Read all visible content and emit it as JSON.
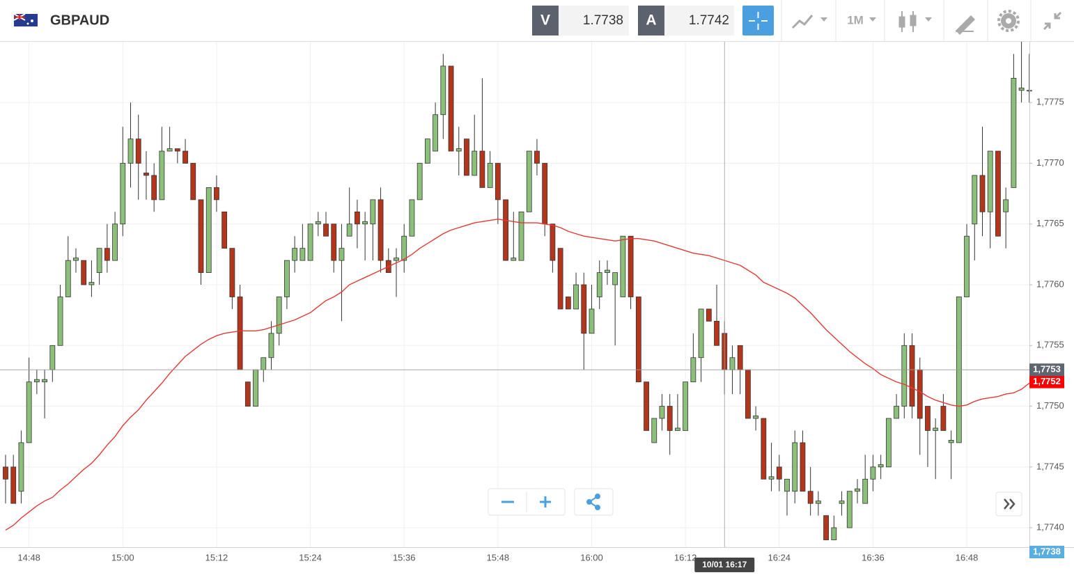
{
  "header": {
    "symbol": "GBPAUD",
    "sell_label": "V",
    "sell_price": 1.7738,
    "buy_label": "A",
    "buy_price": 1.7742,
    "timeframe": "1M"
  },
  "chart_data": {
    "type": "candlestick",
    "title": "GBPAUD",
    "categories": [
      null,
      null,
      null,
      "14:48",
      null,
      null,
      null,
      null,
      null,
      null,
      null,
      null,
      null,
      null,
      null,
      "15:00",
      null,
      null,
      null,
      null,
      null,
      null,
      null,
      null,
      null,
      null,
      null,
      "15:12",
      null,
      null,
      null,
      null,
      null,
      null,
      null,
      null,
      null,
      null,
      null,
      "15:24",
      null,
      null,
      null,
      null,
      null,
      null,
      null,
      null,
      null,
      null,
      null,
      "15:36",
      null,
      null,
      null,
      null,
      null,
      null,
      null,
      null,
      null,
      null,
      null,
      "15:48",
      null,
      null,
      null,
      null,
      null,
      null,
      null,
      null,
      null,
      null,
      null,
      "16:00",
      null,
      null,
      null,
      null,
      null,
      null,
      null,
      null,
      null,
      null,
      null,
      "16:12",
      null,
      null,
      null,
      null,
      null,
      null,
      null,
      null,
      null,
      null,
      null,
      "16:24",
      null,
      null,
      null,
      null,
      null,
      null,
      null,
      null,
      null,
      null,
      null,
      "16:36",
      null,
      null,
      null,
      null,
      null,
      null,
      null,
      null,
      null,
      null,
      null,
      "16:48",
      null,
      null,
      null,
      null,
      null,
      null,
      null,
      null
    ],
    "series": [
      {
        "type": "candlestick",
        "up_color": "#8cbf7a",
        "down_color": "#b3361c",
        "open": [
          1.7745,
          1.7745,
          1.7743,
          1.7747,
          1.7752,
          1.7752,
          1.7753,
          1.7755,
          1.7759,
          1.7762,
          1.7762,
          1.776,
          1.7761,
          1.7763,
          1.7762,
          1.7765,
          1.777,
          1.7772,
          1.77692,
          1.7769,
          1.7767,
          1.7771,
          1.77712,
          1.7771,
          1.777,
          1.7767,
          1.7761,
          1.7768,
          1.7766,
          1.7763,
          1.7759,
          1.7752,
          1.775,
          1.7753,
          1.7754,
          1.7756,
          1.7759,
          1.7762,
          1.7762,
          1.7762,
          1.7765,
          1.7765,
          1.7765,
          1.7762,
          1.7764,
          1.7766,
          1.7765,
          1.7765,
          1.7767,
          1.7762,
          1.7762,
          1.7762,
          1.7764,
          1.7767,
          1.777,
          1.7771,
          1.7774,
          1.7778,
          1.7771,
          1.7772,
          1.7769,
          1.7771,
          1.7768,
          1.777,
          1.7767,
          1.7762,
          1.7762,
          1.7766,
          1.7771,
          1.777,
          1.7765,
          1.7763,
          1.7759,
          1.7758,
          1.776,
          1.7756,
          1.7759,
          1.7761,
          1.776,
          1.7759,
          1.7764,
          1.7759,
          1.7752,
          1.7747,
          1.7749,
          1.775,
          1.7748,
          1.7748,
          1.7752,
          1.7754,
          1.7758,
          1.7757,
          1.7756,
          1.7753,
          1.7755,
          1.7753,
          1.7749,
          1.7749,
          1.7744,
          1.7745,
          1.7743,
          1.7743,
          1.7747,
          1.7743,
          1.7742,
          1.7741,
          1.7739,
          1.7742,
          1.774,
          1.7743,
          1.7742,
          1.7744,
          1.7745,
          1.7745,
          1.7749,
          1.775,
          1.7755,
          1.7753,
          1.775,
          1.7748,
          1.775,
          1.7747,
          1.7747,
          1.7759,
          1.7765,
          1.7769,
          1.7766,
          1.7771,
          1.7766,
          1.7768,
          1.7776,
          1.7776
        ],
        "high": [
          1.7746,
          1.7746,
          1.7748,
          1.7754,
          1.7753,
          1.7753,
          1.7755,
          1.776,
          1.7764,
          1.7763,
          1.7762,
          1.7762,
          1.7763,
          1.7765,
          1.7766,
          1.7773,
          1.7775,
          1.7774,
          1.7771,
          1.777,
          1.7773,
          1.7773,
          1.77712,
          1.7772,
          1.777,
          1.7767,
          1.7768,
          1.7769,
          1.7766,
          1.7763,
          1.776,
          1.7752,
          1.7753,
          1.7754,
          1.7757,
          1.7759,
          1.7762,
          1.7764,
          1.7765,
          1.7765,
          1.7766,
          1.7766,
          1.7765,
          1.7765,
          1.7768,
          1.7767,
          1.7766,
          1.7767,
          1.7768,
          1.7763,
          1.7763,
          1.7765,
          1.7767,
          1.777,
          1.7772,
          1.7775,
          1.7779,
          1.7778,
          1.7773,
          1.7772,
          1.7774,
          1.7777,
          1.7771,
          1.777,
          1.7767,
          1.7766,
          1.7766,
          1.7771,
          1.7772,
          1.777,
          1.7765,
          1.7763,
          1.7759,
          1.7761,
          1.7761,
          1.776,
          1.7762,
          1.7762,
          1.7761,
          1.7764,
          1.7764,
          1.7759,
          1.7752,
          1.7749,
          1.7751,
          1.7751,
          1.7751,
          1.7752,
          1.7756,
          1.7758,
          1.7758,
          1.776,
          1.7757,
          1.7755,
          1.7755,
          1.7753,
          1.775,
          1.7749,
          1.7747,
          1.7746,
          1.7744,
          1.7748,
          1.7748,
          1.7745,
          1.7743,
          1.7741,
          1.7741,
          1.7743,
          1.7743,
          1.7744,
          1.7746,
          1.7746,
          1.7746,
          1.7749,
          1.7751,
          1.7756,
          1.7756,
          1.7754,
          1.775,
          1.7749,
          1.7751,
          1.7748,
          1.7759,
          1.7765,
          1.7769,
          1.7773,
          1.7771,
          1.7771,
          1.7768,
          1.7779,
          1.778,
          1.7779
        ],
        "low": [
          1.7742,
          1.7742,
          1.7742,
          1.7747,
          1.7751,
          1.7749,
          1.7752,
          1.7755,
          1.7759,
          1.7761,
          1.776,
          1.7759,
          1.776,
          1.7761,
          1.7762,
          1.7764,
          1.7768,
          1.7767,
          1.7767,
          1.7766,
          1.7767,
          1.7771,
          1.777,
          1.777,
          1.7767,
          1.776,
          1.7761,
          1.7766,
          1.7763,
          1.7758,
          1.7753,
          1.775,
          1.775,
          1.7752,
          1.7753,
          1.7755,
          1.7758,
          1.7761,
          1.7762,
          1.7762,
          1.7764,
          1.7764,
          1.7761,
          1.7757,
          1.7764,
          1.7763,
          1.7762,
          1.7762,
          1.7761,
          1.7761,
          1.7759,
          1.7761,
          1.7764,
          1.7767,
          1.777,
          1.7771,
          1.7772,
          1.7771,
          1.7769,
          1.7769,
          1.7769,
          1.7768,
          1.7768,
          1.7765,
          1.7762,
          1.7762,
          1.7762,
          1.7766,
          1.7769,
          1.7764,
          1.7761,
          1.7758,
          1.7758,
          1.7758,
          1.7753,
          1.7756,
          1.7758,
          1.776,
          1.7755,
          1.7759,
          1.7758,
          1.7752,
          1.7748,
          1.7747,
          1.7748,
          1.7746,
          1.7748,
          1.7748,
          1.7752,
          1.7752,
          1.7757,
          1.7755,
          1.7751,
          1.7751,
          1.7751,
          1.7749,
          1.7748,
          1.7744,
          1.7743,
          1.7743,
          1.7741,
          1.7742,
          1.7743,
          1.7741,
          1.7741,
          1.7739,
          1.7739,
          1.7741,
          1.774,
          1.7742,
          1.7742,
          1.7743,
          1.7744,
          1.7745,
          1.7749,
          1.7749,
          1.7749,
          1.7746,
          1.7745,
          1.7744,
          1.7748,
          1.7744,
          1.7747,
          1.7759,
          1.7762,
          1.7764,
          1.7763,
          1.7764,
          1.7763,
          1.7768,
          1.7775,
          1.7775
        ],
        "close": [
          1.7744,
          1.7742,
          1.7747,
          1.7752,
          1.77522,
          1.77522,
          1.7755,
          1.7759,
          1.7762,
          1.77622,
          1.776,
          1.77602,
          1.7763,
          1.7762,
          1.7765,
          1.777,
          1.7772,
          1.777,
          1.7769,
          1.7767,
          1.7771,
          1.77712,
          1.7771,
          1.777,
          1.7767,
          1.7761,
          1.7768,
          1.7767,
          1.7763,
          1.7759,
          1.7753,
          1.775,
          1.7753,
          1.7754,
          1.7756,
          1.7759,
          1.7762,
          1.7763,
          1.7763,
          1.7765,
          1.77652,
          1.7764,
          1.7762,
          1.7763,
          1.7765,
          1.7765,
          1.77652,
          1.7767,
          1.7762,
          1.7761,
          1.77622,
          1.7764,
          1.7767,
          1.777,
          1.7772,
          1.7774,
          1.7778,
          1.7771,
          1.77712,
          1.7769,
          1.7771,
          1.7768,
          1.777,
          1.7767,
          1.7762,
          1.77622,
          1.7766,
          1.7771,
          1.777,
          1.7765,
          1.7762,
          1.7758,
          1.7758,
          1.776,
          1.7756,
          1.7758,
          1.7761,
          1.77612,
          1.7761,
          1.7764,
          1.7759,
          1.7752,
          1.7748,
          1.7749,
          1.775,
          1.7748,
          1.77482,
          1.7752,
          1.7754,
          1.7758,
          1.7757,
          1.7755,
          1.7753,
          1.7754,
          1.7753,
          1.7749,
          1.77492,
          1.7744,
          1.77442,
          1.7744,
          1.7744,
          1.7747,
          1.7743,
          1.7742,
          1.77422,
          1.7739,
          1.774,
          1.77422,
          1.7743,
          1.77432,
          1.7744,
          1.7745,
          1.77452,
          1.7749,
          1.775,
          1.7755,
          1.775,
          1.7749,
          1.7748,
          1.77482,
          1.7748,
          1.77472,
          1.7759,
          1.7764,
          1.7769,
          1.7766,
          1.7771,
          1.7764,
          1.7767,
          1.7777,
          1.77762,
          1.7776
        ]
      },
      {
        "type": "line",
        "color": "#e53935",
        "values": [
          1.77398,
          1.77402,
          1.77408,
          1.77413,
          1.77418,
          1.77422,
          1.77425,
          1.77431,
          1.77436,
          1.77442,
          1.77448,
          1.77453,
          1.7746,
          1.77468,
          1.77475,
          1.77484,
          1.77491,
          1.77497,
          1.77505,
          1.77512,
          1.77519,
          1.77527,
          1.77534,
          1.77541,
          1.77546,
          1.77551,
          1.77555,
          1.77558,
          1.7756,
          1.77561,
          1.77562,
          1.77562,
          1.77562,
          1.77563,
          1.77565,
          1.77567,
          1.77569,
          1.77571,
          1.77574,
          1.77577,
          1.77582,
          1.77587,
          1.7759,
          1.77594,
          1.776,
          1.77603,
          1.77606,
          1.77609,
          1.77612,
          1.77615,
          1.77618,
          1.77621,
          1.77625,
          1.7763,
          1.77634,
          1.77638,
          1.77642,
          1.77645,
          1.77647,
          1.77649,
          1.77651,
          1.77652,
          1.77653,
          1.77654,
          1.77653,
          1.77652,
          1.77651,
          1.77651,
          1.77651,
          1.7765,
          1.77649,
          1.77647,
          1.77644,
          1.77642,
          1.7764,
          1.77639,
          1.77638,
          1.77637,
          1.77636,
          1.77637,
          1.77638,
          1.77638,
          1.77637,
          1.77636,
          1.77634,
          1.77632,
          1.7763,
          1.77628,
          1.77626,
          1.77625,
          1.77624,
          1.77622,
          1.7762,
          1.77618,
          1.77616,
          1.77612,
          1.77608,
          1.77602,
          1.77599,
          1.77596,
          1.77593,
          1.77589,
          1.77583,
          1.77577,
          1.7757,
          1.77563,
          1.77557,
          1.77551,
          1.77545,
          1.7754,
          1.77535,
          1.77531,
          1.77526,
          1.77523,
          1.7752,
          1.77518,
          1.77515,
          1.77512,
          1.77508,
          1.77505,
          1.77503,
          1.77501,
          1.775,
          1.77501,
          1.77504,
          1.77506,
          1.77507,
          1.77508,
          1.7751,
          1.77511,
          1.77514,
          1.77519
        ]
      }
    ],
    "ylim": [
      1.77384,
      1.778
    ],
    "yticks": [
      {
        "value": 1.774,
        "label": "1,7740"
      },
      {
        "value": 1.7745,
        "label": "1,7745"
      },
      {
        "value": 1.775,
        "label": "1,7750"
      },
      {
        "value": 1.7755,
        "label": "1,7755"
      },
      {
        "value": 1.776,
        "label": "1,7760"
      },
      {
        "value": 1.7765,
        "label": "1,7765"
      },
      {
        "value": 1.777,
        "label": "1,7770"
      },
      {
        "value": 1.7775,
        "label": "1,7775"
      }
    ],
    "grid": true,
    "crosshair": {
      "x_label": "10/01 16:17",
      "y": {
        "value": 1.7753,
        "label": "1,7753"
      },
      "color": "#5f6670"
    },
    "price_tags": [
      {
        "value": 1.7752,
        "label": "1,7752",
        "color": "#ff0000"
      },
      {
        "value": 1.7738,
        "label": "1,7738",
        "color": "#5aaee0"
      }
    ]
  }
}
